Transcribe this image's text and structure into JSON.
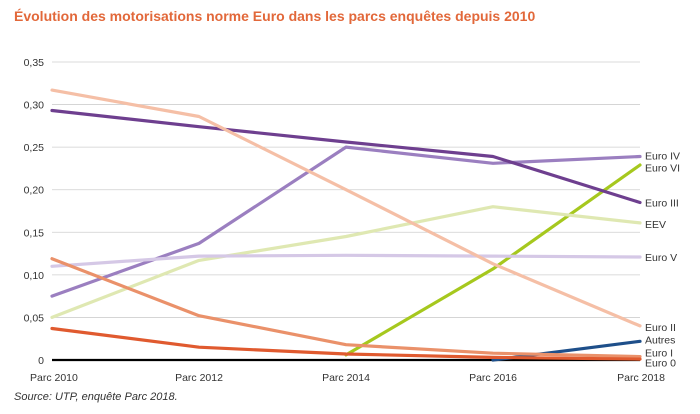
{
  "title": "Évolution des motorisations norme Euro dans les parcs enquêtes depuis 2010",
  "source": "Source: UTP, enquête Parc 2018.",
  "chart_data": {
    "type": "line",
    "categories": [
      "Parc 2010",
      "Parc 2012",
      "Parc 2014",
      "Parc 2016",
      "Parc 2018"
    ],
    "ylim": [
      0,
      0.35
    ],
    "yticks": [
      "0",
      "0,05",
      "0,10",
      "0,15",
      "0,20",
      "0,25",
      "0,30",
      "0,35"
    ],
    "grid": true,
    "series": [
      {
        "name": "Euro IV",
        "color": "#9b7fc0",
        "values": [
          0.075,
          0.137,
          0.25,
          0.231,
          0.239
        ],
        "label_y": 0.24
      },
      {
        "name": "Euro VI",
        "color": "#a6c81e",
        "values": [
          null,
          null,
          0.006,
          0.107,
          0.229
        ],
        "label_y": 0.226
      },
      {
        "name": "Euro III",
        "color": "#6e3f8f",
        "values": [
          0.293,
          0.274,
          0.256,
          0.239,
          0.185
        ],
        "label_y": 0.185
      },
      {
        "name": "EEV",
        "color": "#dfe8b2",
        "values": [
          0.05,
          0.117,
          0.145,
          0.18,
          0.161
        ],
        "label_y": 0.16
      },
      {
        "name": "Euro V",
        "color": "#d5c8e6",
        "values": [
          0.11,
          0.122,
          0.123,
          0.122,
          0.121
        ],
        "label_y": 0.121
      },
      {
        "name": "Euro II",
        "color": "#f5bfa6",
        "values": [
          0.317,
          0.286,
          0.2,
          0.113,
          0.04
        ],
        "label_y": 0.039
      },
      {
        "name": "Autres",
        "color": "#1e4f8a",
        "values": [
          null,
          null,
          null,
          0.0,
          0.022
        ],
        "label_y": 0.024
      },
      {
        "name": "Euro I",
        "color": "#ea916a",
        "values": [
          0.119,
          0.052,
          0.018,
          0.008,
          0.004
        ],
        "label_y": 0.009
      },
      {
        "name": "Euro 0",
        "color": "#e05a2f",
        "values": [
          0.037,
          0.015,
          0.007,
          0.003,
          0.001
        ],
        "label_y": -0.003
      }
    ]
  }
}
